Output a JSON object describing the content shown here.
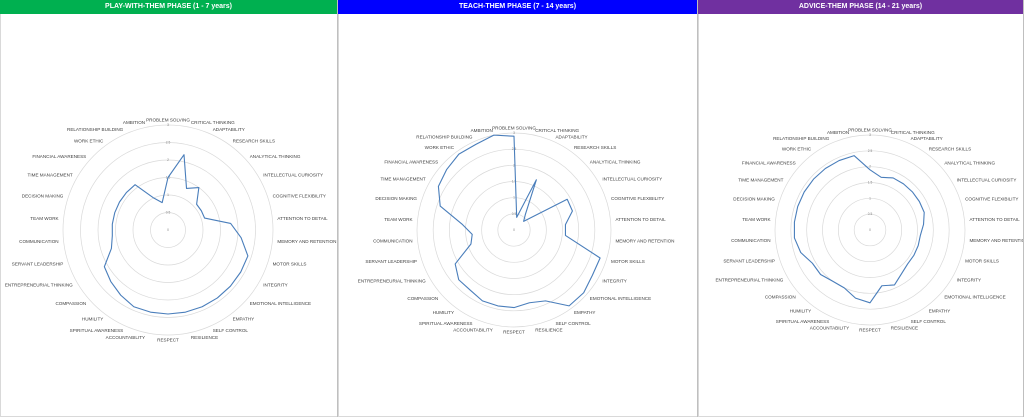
{
  "colors": {
    "series_line": "#4a7ebb",
    "grid": "#d9d9d9",
    "panel_border": "#bfbfbf"
  },
  "chart_data": [
    {
      "type": "radar",
      "header": "PLAY-WITH-THEM PHASE (1 - 7 years)",
      "header_color": "#00b050",
      "rlim": [
        0,
        3
      ],
      "ticks": [
        "0",
        "0.5",
        "1",
        "1.5",
        "2",
        "2.5",
        "3"
      ],
      "categories": [
        "PROBLEM SOLVING",
        "CRITICAL THINKING",
        "ADAPTABILITY",
        "RESEARCH SKILLS",
        "ANALYTICAL THINKING",
        "INTELLECTUAL CURIOSITY",
        "COGNITIVE FLEXIBILITY",
        "ATTENTION TO DETAIL",
        "MEMORY AND RETENTION",
        "MOTOR SKILLS",
        "INTEGRITY",
        "EMOTIONAL INTELLIGENCE",
        "EMPATHY",
        "SELF CONTROL",
        "RESILIENCE",
        "RESPECT",
        "ACCOUNTABILITY",
        "SPIRITUAL AWARENESS",
        "HUMILITY",
        "COMPASSION",
        "ENTREPRENEURIAL THINKING",
        "SERVANT LEADERSHIP",
        "COMMUNICATION",
        "TEAM WORK",
        "DECISION MAKING",
        "TIME MANAGEMENT",
        "FINANCIAL AWARENESS",
        "WORK ETHIC",
        "RELATIONSHIP BUILDING",
        "AMBITION"
      ],
      "values": [
        1.5,
        2.2,
        1.3,
        1.5,
        1.1,
        1.1,
        1.1,
        1.8,
        2.1,
        2.4,
        2.4,
        2.4,
        2.4,
        2.4,
        2.4,
        2.4,
        2.4,
        2.4,
        2.3,
        2.2,
        2.1,
        1.7,
        1.6,
        1.6,
        1.6,
        1.6,
        1.6,
        1.6,
        1.0,
        0.8
      ]
    },
    {
      "type": "radar",
      "header": "TEACH-THEM PHASE  (7 - 14 years)",
      "header_color": "#0000ff",
      "rlim": [
        0,
        3
      ],
      "ticks": [
        "0",
        "0.5",
        "1",
        "1.5",
        "2",
        "2.5",
        "3"
      ],
      "categories": [
        "PROBLEM SOLVING",
        "CRITICAL THINKING",
        "ADAPTABILITY",
        "RESEARCH SKILLS",
        "ANALYTICAL THINKING",
        "INTELLECTUAL CURIOSITY",
        "COGNITIVE FLEXIBILITY",
        "ATTENTION TO DETAIL",
        "MEMORY AND RETENTION",
        "MOTOR SKILLS",
        "INTEGRITY",
        "EMOTIONAL INTELLIGENCE",
        "EMPATHY",
        "SELF CONTROL",
        "RESILIENCE",
        "RESPECT",
        "ACCOUNTABILITY",
        "SPIRITUAL AWARENESS",
        "HUMILITY",
        "COMPASSION",
        "ENTREPRENEURIAL THINKING",
        "SERVANT LEADERSHIP",
        "COMMUNICATION",
        "TEAM WORK",
        "DECISION MAKING",
        "TIME MANAGEMENT",
        "FINANCIAL AWARENESS",
        "WORK ETHIC",
        "RELATIONSHIP BUILDING",
        "AMBITION"
      ],
      "values": [
        2.9,
        0.4,
        1.7,
        0.6,
        0.4,
        1.9,
        1.9,
        1.6,
        1.6,
        2.8,
        2.8,
        2.9,
        2.9,
        2.4,
        2.3,
        2.4,
        2.4,
        2.4,
        2.3,
        2.3,
        2.1,
        1.4,
        1.3,
        1.6,
        2.4,
        2.7,
        2.8,
        2.9,
        2.9,
        3.0
      ]
    },
    {
      "type": "radar",
      "header": "ADVICE-THEM PHASE (14 - 21 years)",
      "header_color": "#7030a0",
      "rlim": [
        0,
        3
      ],
      "ticks": [
        "0",
        "0.5",
        "1",
        "1.5",
        "2",
        "2.5",
        "3"
      ],
      "categories": [
        "PROBLEM SOLVING",
        "CRITICAL THINKING",
        "ADAPTABILITY",
        "RESEARCH SKILLS",
        "ANALYTICAL THINKING",
        "INTELLECTUAL CURIOSITY",
        "COGNITIVE FLEXIBILITY",
        "ATTENTION TO DETAIL",
        "MEMORY AND RETENTION",
        "MOTOR SKILLS",
        "INTEGRITY",
        "EMOTIONAL INTELLIGENCE",
        "EMPATHY",
        "SELF CONTROL",
        "RESILIENCE",
        "RESPECT",
        "ACCOUNTABILITY",
        "SPIRITUAL AWARENESS",
        "HUMILITY",
        "COMPASSION",
        "ENTREPRENEURIAL THINKING",
        "SERVANT LEADERSHIP",
        "COMMUNICATION",
        "TEAM WORK",
        "DECISION MAKING",
        "TIME MANAGEMENT",
        "FINANCIAL AWARENESS",
        "WORK ETHIC",
        "RELATIONSHIP BUILDING",
        "AMBITION"
      ],
      "values": [
        1.9,
        1.7,
        1.8,
        1.8,
        1.8,
        1.8,
        1.8,
        1.7,
        1.6,
        1.6,
        1.6,
        1.6,
        1.7,
        1.9,
        1.8,
        2.3,
        2.2,
        2.0,
        2.0,
        2.1,
        2.1,
        2.3,
        2.4,
        2.4,
        2.4,
        2.4,
        2.4,
        2.4,
        2.4,
        2.4
      ]
    }
  ]
}
